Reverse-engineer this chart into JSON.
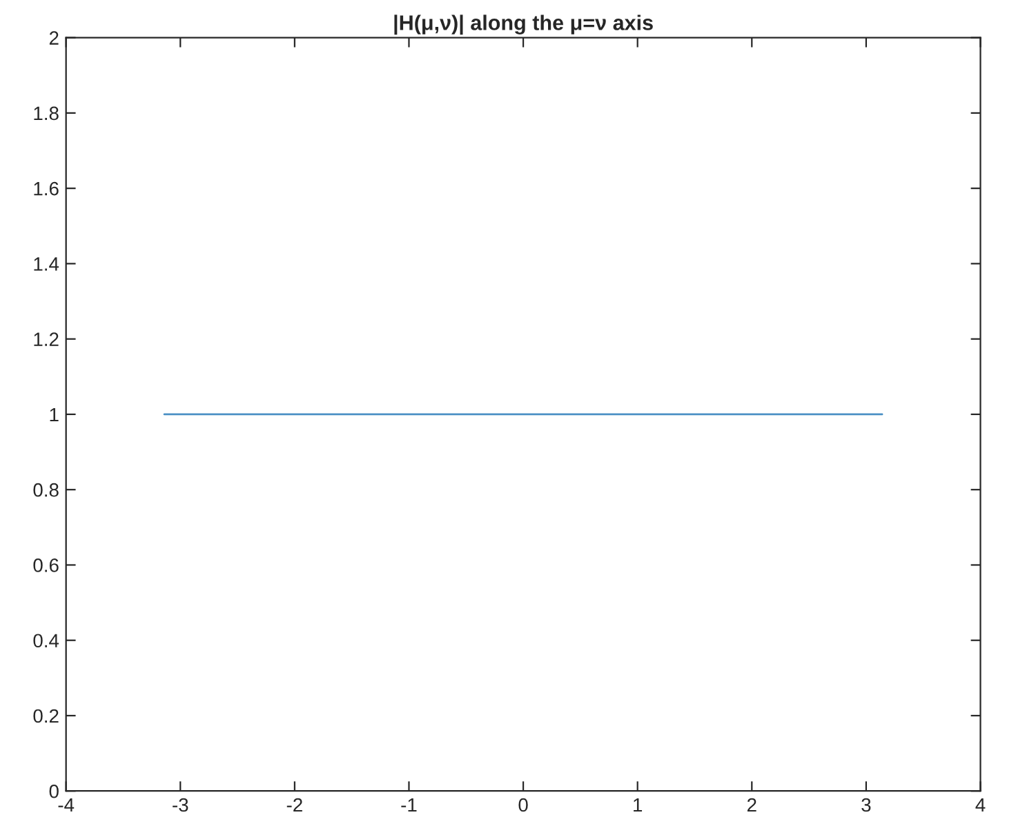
{
  "chart_data": {
    "type": "line",
    "title": "|H(μ,ν)| along the μ=ν axis",
    "x": [
      -3.14,
      3.14
    ],
    "series": [
      {
        "color": "#4a90c4",
        "values": [
          1,
          1
        ]
      }
    ],
    "xlim": [
      -4,
      4
    ],
    "xticks": [
      -4,
      -3,
      -2,
      -1,
      0,
      1,
      2,
      3,
      4
    ],
    "ylim": [
      0,
      2
    ],
    "yticks": [
      0,
      0.2,
      0.4,
      0.6,
      0.8,
      1,
      1.2,
      1.4,
      1.6,
      1.8,
      2
    ],
    "grid": false
  }
}
